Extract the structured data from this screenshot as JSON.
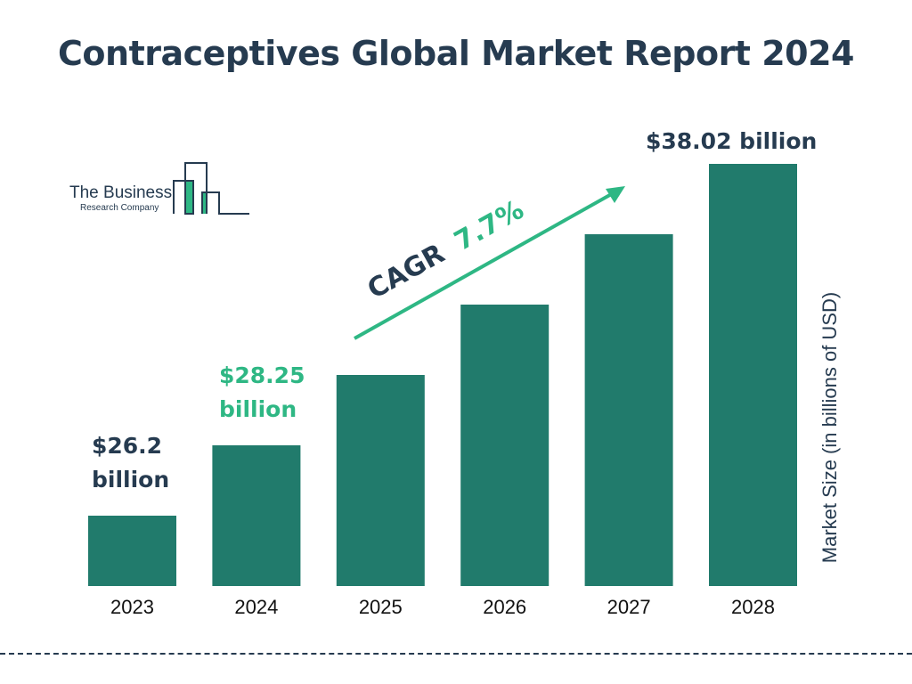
{
  "chart_data": {
    "type": "bar",
    "title": "Contraceptives Global Market Report 2024",
    "categories": [
      "2023",
      "2024",
      "2025",
      "2026",
      "2027",
      "2028"
    ],
    "values": [
      26.2,
      28.25,
      30.43,
      32.77,
      35.29,
      38.02
    ],
    "data_labels": {
      "2023": "$26.2 billion",
      "2024": "$28.25 billion",
      "2028": "$38.02 billion"
    },
    "xlabel": "",
    "ylabel": "Market Size (in billions of USD)",
    "annotation": {
      "prefix": "CAGR",
      "value": "7.7%"
    },
    "grid": false,
    "colors": {
      "bar": "#217b6c",
      "title": "#263b50",
      "accent": "#2eb784"
    }
  },
  "logo": {
    "line1": "The Business",
    "line2": "Research Company"
  }
}
